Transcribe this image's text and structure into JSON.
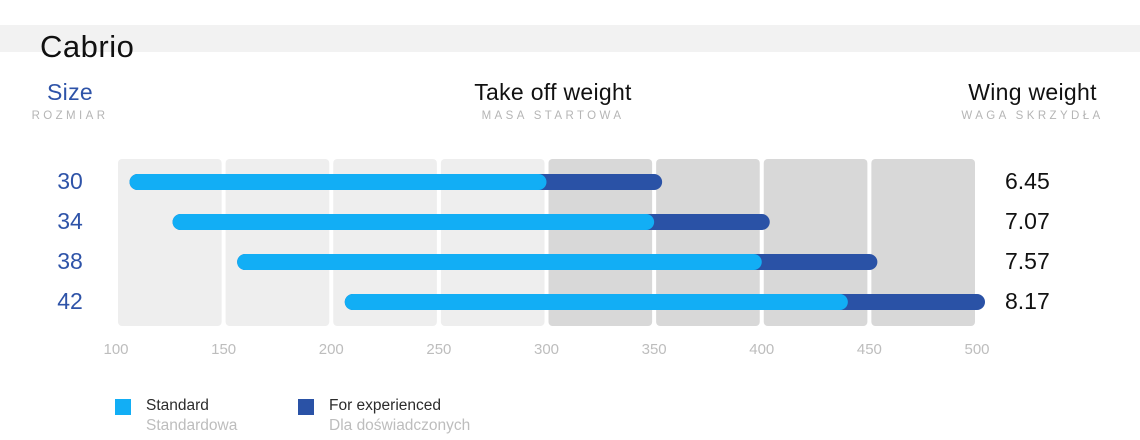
{
  "title": "Cabrio",
  "headers": {
    "size": {
      "main": "Size",
      "sub": "ROZMIAR"
    },
    "takeoff": {
      "main": "Take off weight",
      "sub": "MASA STARTOWA"
    },
    "wing": {
      "main": "Wing weight",
      "sub": "WAGA SKRZYDŁA"
    }
  },
  "legend": [
    {
      "label": "Standard",
      "sublabel": "Standardowa",
      "color": "#12aef5"
    },
    {
      "label": "For  experienced",
      "sublabel": "Dla doświadczonych",
      "color": "#2a52a6"
    }
  ],
  "colors": {
    "standard": "#12aef5",
    "experienced": "#2a52a6",
    "size_text": "#2e53a8",
    "band_light": "#eeeeee",
    "band_dark": "#d8d8d8"
  },
  "chart_data": {
    "type": "bar",
    "orientation": "horizontal",
    "categories": [
      "30",
      "34",
      "38",
      "42"
    ],
    "series": [
      {
        "name": "Standard",
        "ranges": [
          [
            110,
            300
          ],
          [
            130,
            350
          ],
          [
            160,
            400
          ],
          [
            210,
            440
          ]
        ]
      },
      {
        "name": "For  experienced",
        "ranges": [
          [
            300,
            350
          ],
          [
            350,
            400
          ],
          [
            400,
            450
          ],
          [
            440,
            500
          ]
        ]
      }
    ],
    "wing_weights": [
      "6.45",
      "7.07",
      "7.57",
      "8.17"
    ],
    "xlim": [
      100,
      500
    ],
    "xticks": [
      100,
      150,
      200,
      250,
      300,
      350,
      400,
      450,
      500
    ],
    "xticks_labels": [
      "100",
      "150",
      "200",
      "250",
      "300",
      "350",
      "400",
      "450",
      "500"
    ],
    "shaded_from": 300
  }
}
